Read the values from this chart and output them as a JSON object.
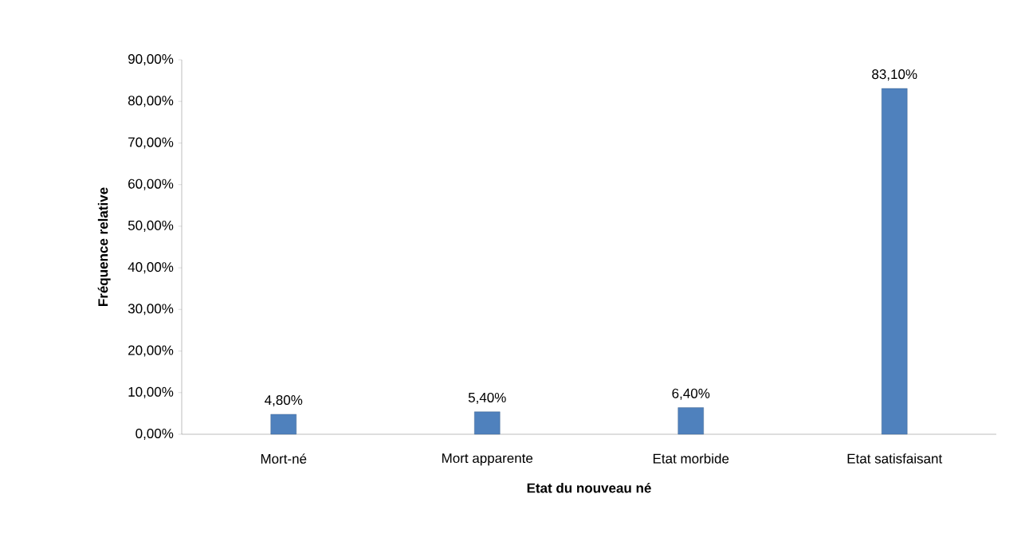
{
  "chart_data": {
    "type": "bar",
    "xlabel": "Etat du nouveau né",
    "ylabel": "Fréquence  relative",
    "categories": [
      "Mort-né",
      "Mort apparente",
      "Etat morbide",
      "Etat satisfaisant"
    ],
    "values": [
      4.8,
      5.4,
      6.4,
      83.1
    ],
    "value_labels": [
      "4,80%",
      "5,40%",
      "6,40%",
      "83,10%"
    ],
    "color": "#4f81bd",
    "ylim": [
      0,
      90
    ],
    "yticks": [
      {
        "value": 0,
        "label": "0,00%"
      },
      {
        "value": 10,
        "label": "10,00%"
      },
      {
        "value": 20,
        "label": "20,00%"
      },
      {
        "value": 30,
        "label": "30,00%"
      },
      {
        "value": 40,
        "label": "40,00%"
      },
      {
        "value": 50,
        "label": "50,00%"
      },
      {
        "value": 60,
        "label": "60,00%"
      },
      {
        "value": 70,
        "label": "70,00%"
      },
      {
        "value": 80,
        "label": "80,00%"
      },
      {
        "value": 90,
        "label": "90,00%"
      }
    ]
  }
}
